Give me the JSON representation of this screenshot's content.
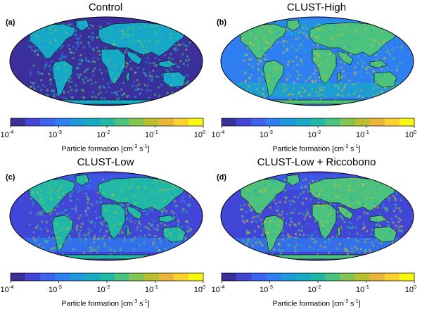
{
  "colorbar": {
    "label": "Particle formation [cm",
    "label_exp1": "-3",
    "label_mid": " s",
    "label_exp2": "-1",
    "label_end": "]",
    "tick_labels": [
      {
        "base": "10",
        "exp": "-4"
      },
      {
        "base": "10",
        "exp": "-3"
      },
      {
        "base": "10",
        "exp": "-2"
      },
      {
        "base": "10",
        "exp": "-1"
      },
      {
        "base": "10",
        "exp": "0"
      }
    ],
    "colors": [
      "#3b2f9b",
      "#4246d6",
      "#3d63f0",
      "#2f7ff2",
      "#1f98dd",
      "#16aac6",
      "#22b8a6",
      "#4cc27f",
      "#83c452",
      "#bcbe32",
      "#e9b63a",
      "#fbd22f",
      "#f9f90f"
    ]
  },
  "ocean_color": "#3f3fb3",
  "panels": [
    {
      "id": "a",
      "title": "Control",
      "letter": "(a)",
      "ocean_level": 0,
      "land_level": 5
    },
    {
      "id": "b",
      "title": "CLUST-High",
      "letter": "(b)",
      "ocean_level": 3,
      "land_level": 7
    },
    {
      "id": "c",
      "title": "CLUST-Low",
      "letter": "(c)",
      "ocean_level": 1,
      "land_level": 6
    },
    {
      "id": "d",
      "title": "CLUST-Low + Riccobono",
      "letter": "(d)",
      "ocean_level": 1,
      "land_level": 7
    }
  ]
}
